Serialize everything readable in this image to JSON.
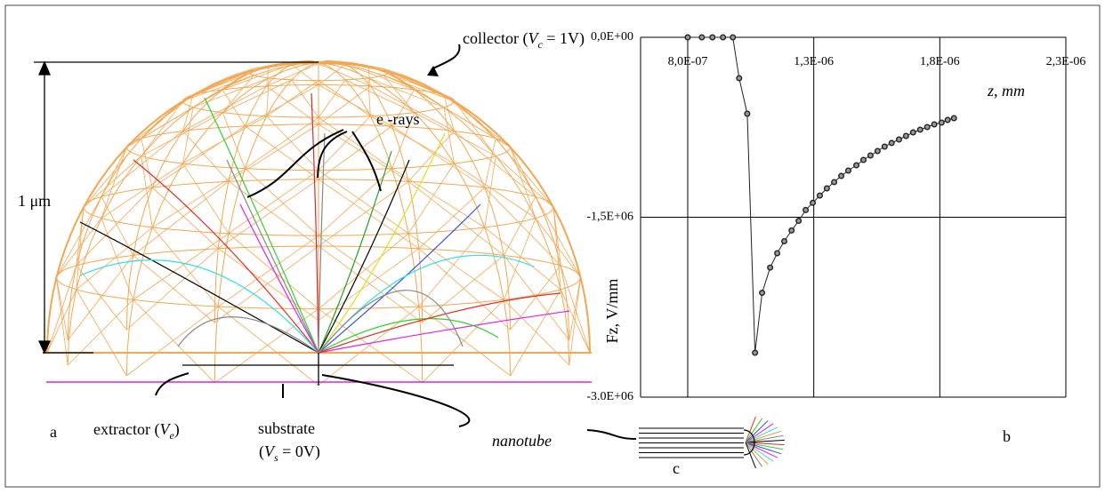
{
  "chart_data": {
    "type": "line",
    "x": [
      8e-07,
      8.56e-07,
      8.98e-07,
      9.4e-07,
      9.79e-07,
      1.004e-06,
      1.036e-06,
      1.067e-06,
      1.095e-06,
      1.127e-06,
      1.155e-06,
      1.183e-06,
      1.212e-06,
      1.24e-06,
      1.268e-06,
      1.296e-06,
      1.324e-06,
      1.352e-06,
      1.381e-06,
      1.409e-06,
      1.437e-06,
      1.469e-06,
      1.497e-06,
      1.525e-06,
      1.553e-06,
      1.581e-06,
      1.609e-06,
      1.638e-06,
      1.666e-06,
      1.694e-06,
      1.722e-06,
      1.75e-06,
      1.778e-06,
      1.807e-06,
      1.831e-06,
      1.856e-06
    ],
    "values": [
      0,
      0,
      0,
      0,
      0,
      -341000,
      -637000,
      -2630000,
      -2130000,
      -1920000,
      -1800000,
      -1700000,
      -1610000,
      -1530000,
      -1440000,
      -1380000,
      -1319000,
      -1259000,
      -1207000,
      -1156000,
      -1111000,
      -1067000,
      -1022000,
      -985000,
      -948000,
      -911000,
      -881000,
      -852000,
      -822000,
      -793000,
      -770000,
      -748000,
      -726000,
      -711000,
      -689000,
      -674000
    ],
    "color": "#222222",
    "xlim": [
      6.13e-07,
      2.3e-06
    ],
    "ylim": [
      -3000000,
      0
    ],
    "xticks": [
      {
        "value": 8e-07,
        "label": "8,0E-07"
      },
      {
        "value": 1.3e-06,
        "label": "1,3E-06"
      },
      {
        "value": 1.8e-06,
        "label": "1,8E-06"
      },
      {
        "value": 2.3e-06,
        "label": "2,3E-06"
      }
    ],
    "yticks": [
      {
        "value": 0,
        "label": "0,0E+00"
      },
      {
        "value": -1500000,
        "label": "-1,5E+06"
      },
      {
        "value": -3000000,
        "label": "-3.0E+06"
      }
    ],
    "x_label": "z, mm",
    "y_label": "Fz, V/mm",
    "grid": true,
    "panel_label": "b"
  },
  "diagram": {
    "collector": {
      "text": "collector (",
      "var": "V",
      "sub": "c",
      "rest": " = 1V)"
    },
    "rays": "e -rays",
    "scale": "1 μm",
    "panel_a": "a",
    "extractor": {
      "text": "extractor (",
      "var": "V",
      "sub": "e",
      "rest": ")"
    },
    "substrate": "substrate",
    "substrate_potential": {
      "text": "(",
      "var": "V",
      "sub": "s",
      "rest": " = 0V)"
    },
    "nanotube": "nanotube",
    "panel_c": "c"
  }
}
